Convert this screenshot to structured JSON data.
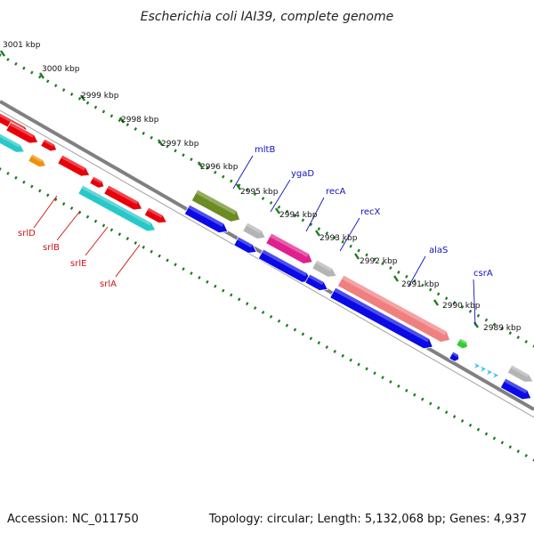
{
  "title": "Escherichia coli IAI39, complete genome",
  "footer": {
    "accession": "Accession: NC_011750",
    "summary": "Topology: circular; Length: 5,132,068 bp; Genes: 4,937"
  },
  "scale_labels": [
    "3001 kbp",
    "3000 kbp",
    "2999 kbp",
    "2998 kbp",
    "2997 kbp",
    "2996 kbp",
    "2995 kbp",
    "2994 kbp",
    "2993 kbp",
    "2992 kbp",
    "2991 kbp",
    "2990 kbp",
    "2989 kbp"
  ],
  "gene_labels_upper": [
    "mltB",
    "ygaD",
    "recA",
    "recX",
    "alaS",
    "csrA"
  ],
  "gene_labels_lower": [
    "srlD",
    "srlB",
    "srlE",
    "srlA"
  ],
  "colors": {
    "backbone": "#808080",
    "tick": "#1f7a1f",
    "blue_label": "#1010c0",
    "red_label": "#d01010",
    "red": "#e8000a",
    "cyan": "#28c8c8",
    "orange": "#f0900a",
    "olive": "#6b8b23",
    "pink": "#e0208c",
    "salmon": "#f08080",
    "blue": "#0a0ae6",
    "gray": "#b4b4b4",
    "green": "#33cc33",
    "lightblue": "#40c0f0"
  }
}
